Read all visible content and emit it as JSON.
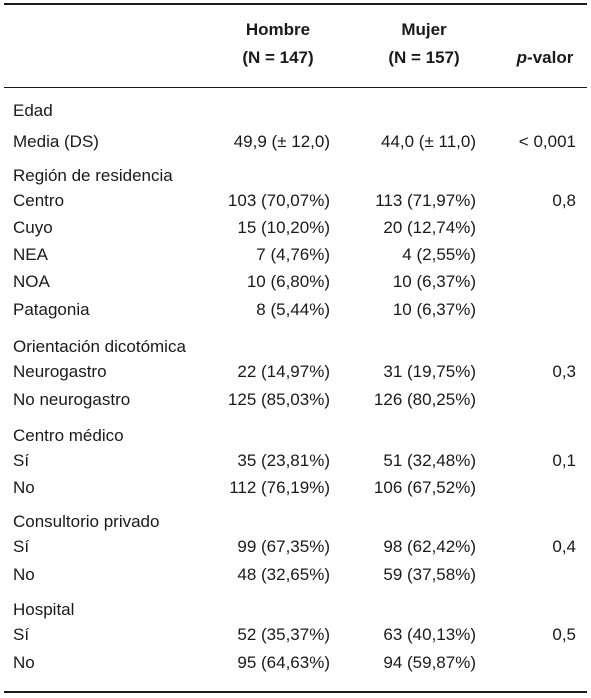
{
  "header": {
    "col1_line1": "Hombre",
    "col1_line2": "(N = 147)",
    "col2_line1": "Mujer",
    "col2_line2": "(N = 157)",
    "col3_italic": "p",
    "col3_rest": "-valor"
  },
  "rows": [
    {
      "type": "section",
      "label": "Edad",
      "c1": "",
      "c2": "",
      "c3": ""
    },
    {
      "type": "data",
      "label": "Media (DS)",
      "c1": "49,9 (± 12,0)",
      "c2": "44,0 (± 11,0)",
      "c3": "< 0,001"
    },
    {
      "type": "section",
      "label": "Región de residencia",
      "c1": "",
      "c2": "",
      "c3": ""
    },
    {
      "type": "data",
      "label": "Centro",
      "c1": "103 (70,07%)",
      "c2": "113 (71,97%)",
      "c3": "0,8"
    },
    {
      "type": "data",
      "label": "Cuyo",
      "c1": "15 (10,20%)",
      "c2": "20 (12,74%)",
      "c3": ""
    },
    {
      "type": "data",
      "label": "NEA",
      "c1": "7 (4,76%)",
      "c2": "4 (2,55%)",
      "c3": ""
    },
    {
      "type": "data",
      "label": "NOA",
      "c1": "10 (6,80%)",
      "c2": "10 (6,37%)",
      "c3": ""
    },
    {
      "type": "data",
      "label": "Patagonia",
      "c1": "8 (5,44%)",
      "c2": "10 (6,37%)",
      "c3": ""
    },
    {
      "type": "section",
      "label": "Orientación dicotómica",
      "c1": "",
      "c2": "",
      "c3": ""
    },
    {
      "type": "data",
      "label": "Neurogastro",
      "c1": "22 (14,97%)",
      "c2": "31 (19,75%)",
      "c3": "0,3"
    },
    {
      "type": "data",
      "label": "No neurogastro",
      "c1": "125 (85,03%)",
      "c2": "126 (80,25%)",
      "c3": ""
    },
    {
      "type": "section",
      "label": "Centro médico",
      "c1": "",
      "c2": "",
      "c3": ""
    },
    {
      "type": "data",
      "label": "Sí",
      "c1": "35 (23,81%)",
      "c2": "51 (32,48%)",
      "c3": "0,1"
    },
    {
      "type": "data",
      "label": "No",
      "c1": "112 (76,19%)",
      "c2": "106 (67,52%)",
      "c3": ""
    },
    {
      "type": "section",
      "label": "Consultorio privado",
      "c1": "",
      "c2": "",
      "c3": ""
    },
    {
      "type": "data",
      "label": "Sí",
      "c1": "99 (67,35%)",
      "c2": "98 (62,42%)",
      "c3": "0,4"
    },
    {
      "type": "data",
      "label": "No",
      "c1": "48 (32,65%)",
      "c2": "59 (37,58%)",
      "c3": ""
    },
    {
      "type": "section",
      "label": "Hospital",
      "c1": "",
      "c2": "",
      "c3": ""
    },
    {
      "type": "data",
      "label": "Sí",
      "c1": "52 (35,37%)",
      "c2": "63 (40,13%)",
      "c3": "0,5"
    },
    {
      "type": "data",
      "label": "No",
      "c1": "95 (64,63%)",
      "c2": "94 (59,87%)",
      "c3": ""
    }
  ]
}
